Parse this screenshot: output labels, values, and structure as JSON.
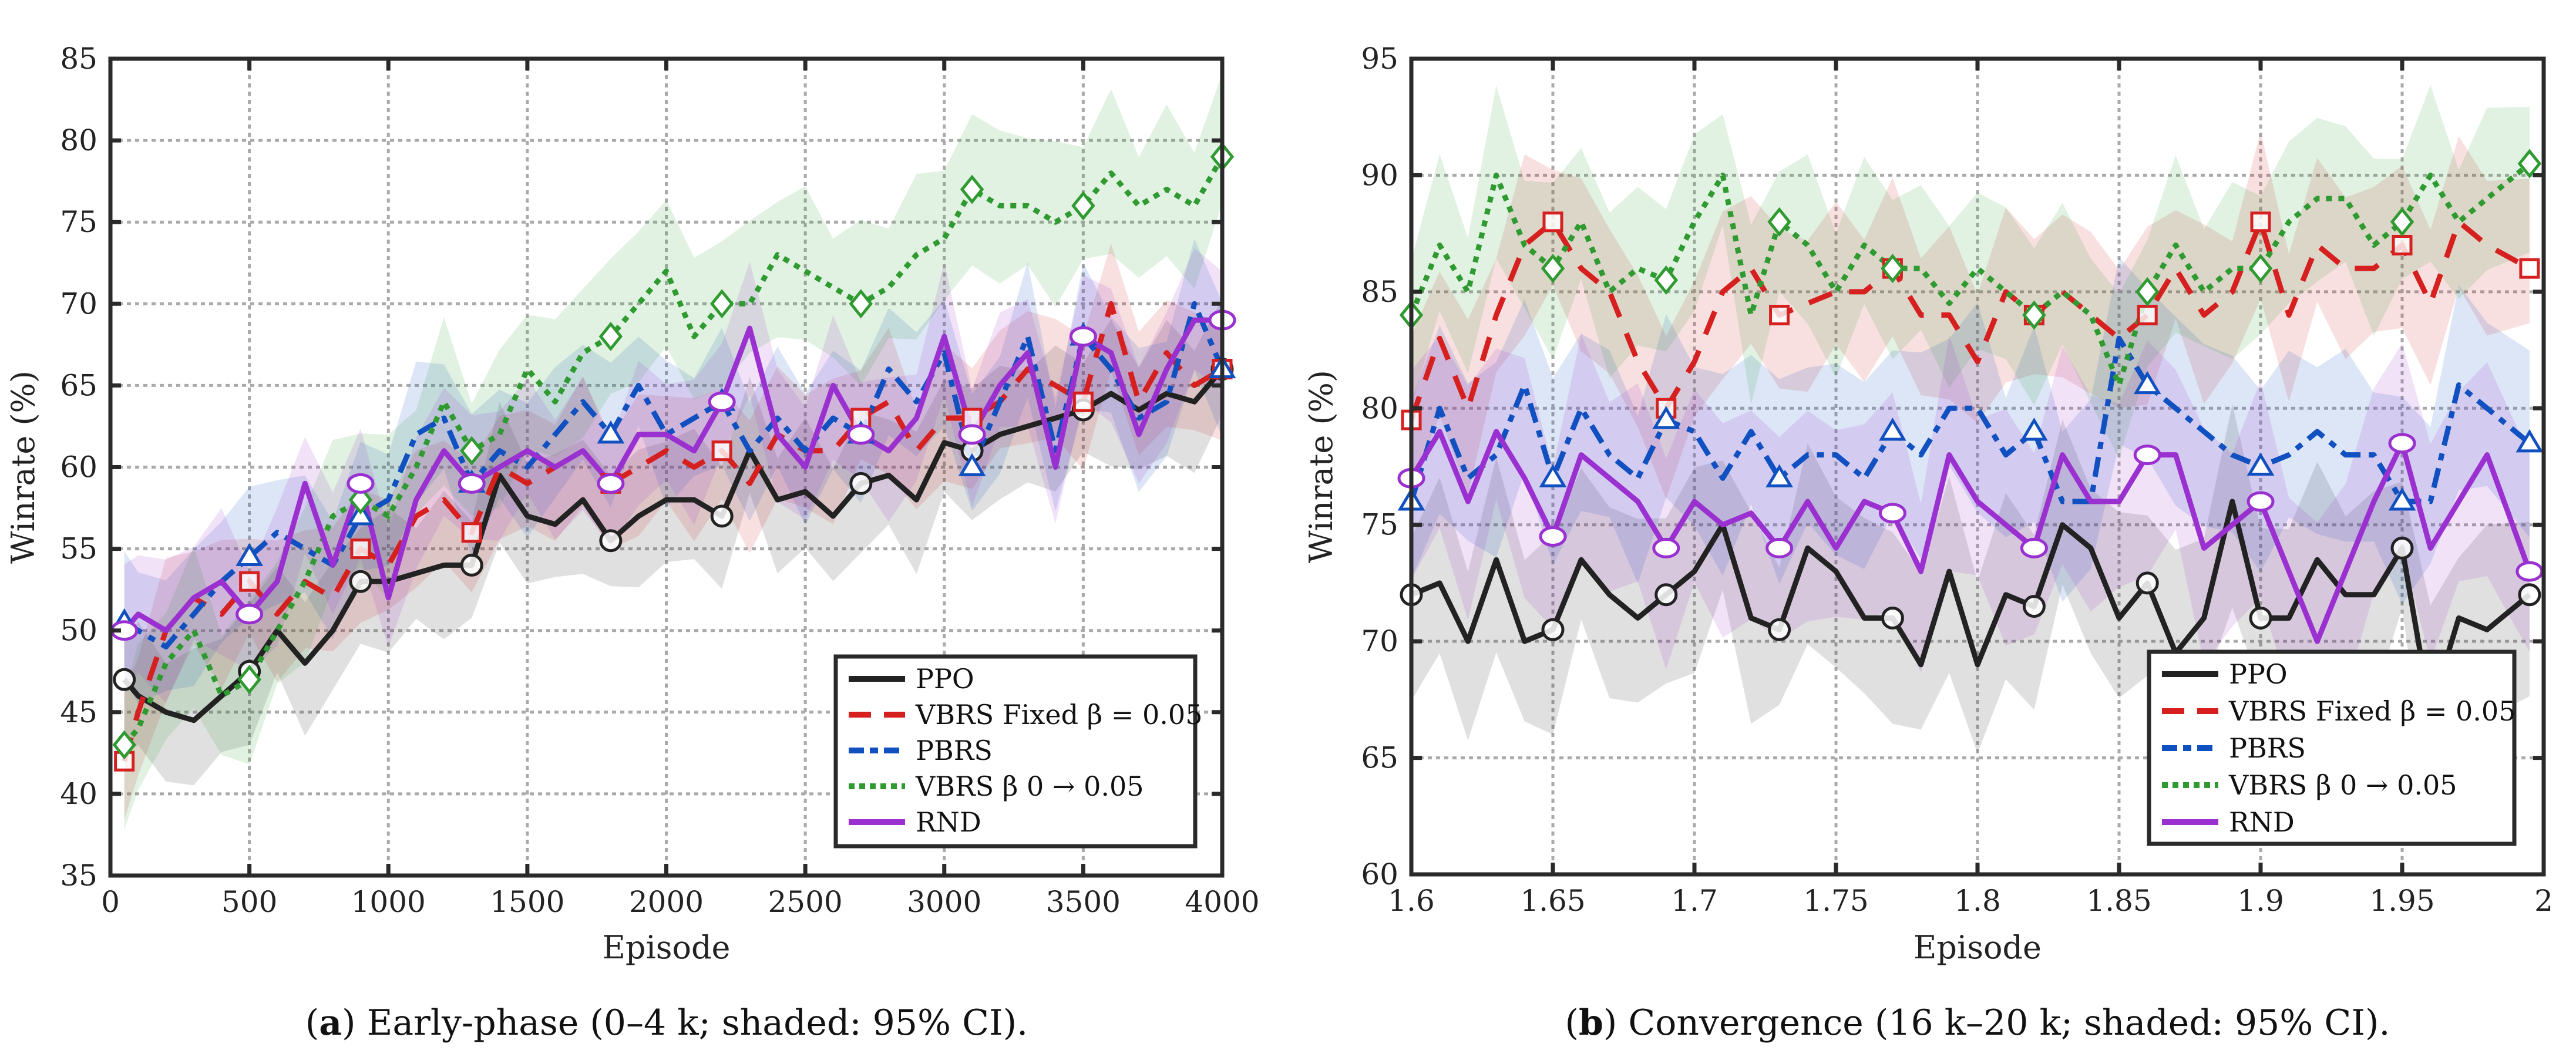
{
  "chart_data": [
    {
      "type": "line",
      "id": "a",
      "caption_label": "a",
      "caption_text": " Early-phase (0–4 k; shaded: 95% CI).",
      "xlabel": "Episode",
      "ylabel": "Winrate (%)",
      "xlim": [
        0,
        4000
      ],
      "ylim": [
        35,
        85
      ],
      "xticks": [
        0,
        500,
        1000,
        1500,
        2000,
        2500,
        3000,
        3500,
        4000
      ],
      "xtick_labels": [
        "0",
        "500",
        "1000",
        "1500",
        "2000",
        "2500",
        "3000",
        "3500",
        "4000"
      ],
      "yticks": [
        35,
        40,
        45,
        50,
        55,
        60,
        65,
        70,
        75,
        80,
        85
      ],
      "ytick_labels": [
        "35",
        "40",
        "45",
        "50",
        "55",
        "60",
        "65",
        "70",
        "75",
        "80",
        "85"
      ],
      "grid": true,
      "legend_position": "bottom-right",
      "x": [
        50,
        100,
        200,
        300,
        400,
        500,
        600,
        700,
        800,
        900,
        1000,
        1100,
        1200,
        1300,
        1400,
        1500,
        1600,
        1700,
        1800,
        1900,
        2000,
        2100,
        2200,
        2300,
        2400,
        2500,
        2600,
        2700,
        2800,
        2900,
        3000,
        3100,
        3200,
        3300,
        3400,
        3500,
        3600,
        3700,
        3800,
        3900,
        4000
      ],
      "marker_x": [
        50,
        500,
        900,
        1300,
        1800,
        2200,
        2700,
        3100,
        3500,
        4000
      ],
      "series": [
        {
          "key": "ppo",
          "name": "PPO",
          "color": "#222222",
          "ci": 3.5,
          "values": [
            47,
            46,
            45,
            44.5,
            46,
            47.5,
            50,
            48,
            50,
            53,
            53,
            53.5,
            54,
            54,
            59.5,
            57,
            56.5,
            58,
            55.5,
            57,
            58,
            58,
            57,
            61,
            58,
            58.5,
            57,
            59,
            59.5,
            58,
            61.5,
            61,
            62,
            62.5,
            63,
            63.5,
            64.5,
            63.5,
            64.5,
            64,
            66
          ]
        },
        {
          "key": "vbrs_fixed",
          "name": "VBRS Fixed β = 0.05",
          "color": "#d62020",
          "ci": 3.5,
          "values": [
            42,
            45,
            50,
            52,
            51,
            53,
            51,
            53,
            52,
            55,
            54,
            57,
            58,
            56,
            60,
            59,
            60,
            61,
            59,
            60,
            61,
            60,
            61,
            59,
            62,
            61,
            61,
            63,
            64,
            61,
            63,
            63,
            64,
            66,
            65,
            64,
            70,
            64,
            67,
            65,
            66
          ]
        },
        {
          "key": "pbrs",
          "name": "PBRS",
          "color": "#1050c0",
          "ci": 3.5,
          "values": [
            50.5,
            50,
            49,
            51,
            53,
            54.5,
            56,
            55,
            54,
            57,
            58,
            62,
            63,
            59,
            61,
            60,
            62,
            64,
            62,
            65,
            62,
            63,
            64,
            61,
            63,
            61,
            63,
            62,
            66,
            64,
            67,
            60,
            64,
            68,
            61,
            68,
            66,
            63,
            64,
            70,
            66
          ]
        },
        {
          "key": "vbrs_anneal",
          "name": "VBRS β 0 → 0.05",
          "color": "#2e9a30",
          "ci": 4,
          "values": [
            43,
            44,
            48,
            50,
            46,
            47,
            50,
            53,
            57,
            58,
            57,
            60,
            64,
            61,
            62,
            66,
            64,
            67,
            68,
            70,
            72,
            68,
            70,
            70,
            73,
            72,
            71,
            70,
            71,
            73,
            74,
            77,
            76,
            76,
            75,
            76,
            78,
            76,
            77,
            76,
            79
          ]
        },
        {
          "key": "rnd",
          "name": "RND",
          "color": "#9b30d0",
          "ci": 3.5,
          "values": [
            50,
            51,
            50,
            52,
            53,
            51,
            53,
            59,
            54,
            59,
            52,
            58,
            61,
            59,
            60,
            61,
            60,
            61,
            59,
            62,
            62,
            61,
            64,
            68.5,
            62,
            60,
            65,
            62,
            61,
            63,
            68,
            62,
            65,
            67,
            60,
            68,
            67,
            62,
            66,
            69,
            69
          ]
        }
      ]
    },
    {
      "type": "line",
      "id": "b",
      "caption_label": "b",
      "caption_text": " Convergence (16 k–20 k; shaded: 95% CI).",
      "xlabel": "Episode",
      "ylabel": "Winrate (%)",
      "xlim": [
        1.6,
        2.0
      ],
      "ylim": [
        60,
        95
      ],
      "xticks": [
        1.6,
        1.65,
        1.7,
        1.75,
        1.8,
        1.85,
        1.9,
        1.95,
        2.0
      ],
      "xtick_labels": [
        "1.6",
        "1.65",
        "1.7",
        "1.75",
        "1.8",
        "1.85",
        "1.9",
        "1.95",
        "2"
      ],
      "yticks": [
        60,
        65,
        70,
        75,
        80,
        85,
        90,
        95
      ],
      "ytick_labels": [
        "60",
        "65",
        "70",
        "75",
        "80",
        "85",
        "90",
        "95"
      ],
      "grid": true,
      "legend_position": "bottom-right",
      "x": [
        1.6,
        1.61,
        1.62,
        1.63,
        1.64,
        1.65,
        1.66,
        1.67,
        1.68,
        1.69,
        1.7,
        1.71,
        1.72,
        1.73,
        1.74,
        1.75,
        1.76,
        1.77,
        1.78,
        1.79,
        1.8,
        1.81,
        1.82,
        1.83,
        1.84,
        1.85,
        1.86,
        1.87,
        1.88,
        1.89,
        1.9,
        1.91,
        1.92,
        1.93,
        1.94,
        1.95,
        1.96,
        1.97,
        1.98,
        1.995
      ],
      "marker_x": [
        1.6,
        1.65,
        1.69,
        1.73,
        1.77,
        1.82,
        1.86,
        1.9,
        1.95,
        1.995
      ],
      "series": [
        {
          "key": "ppo",
          "name": "PPO",
          "color": "#222222",
          "ci": 3.5,
          "values": [
            72,
            72.5,
            70,
            73.5,
            70,
            70.5,
            73.5,
            72,
            71,
            72,
            73,
            75,
            71,
            70.5,
            74,
            73,
            71,
            71,
            69,
            73,
            69,
            72,
            71.5,
            75,
            74,
            71,
            72.5,
            69.5,
            71,
            76,
            71,
            71,
            73.5,
            72,
            72,
            74,
            67,
            71,
            70.5,
            72
          ]
        },
        {
          "key": "vbrs_fixed",
          "name": "VBRS Fixed β = 0.05",
          "color": "#d62020",
          "ci": 3,
          "values": [
            79.5,
            83,
            80,
            84,
            87,
            88,
            86,
            85,
            82,
            80,
            82,
            85,
            86,
            84,
            84.5,
            85,
            85,
            86,
            84,
            84,
            82,
            85,
            84,
            85,
            84,
            83,
            84,
            86,
            84,
            85,
            88,
            84,
            87,
            86,
            86,
            87,
            84.5,
            88,
            87,
            86
          ]
        },
        {
          "key": "pbrs",
          "name": "PBRS",
          "color": "#1050c0",
          "ci": 3.5,
          "values": [
            76,
            80,
            77,
            78,
            81,
            77,
            80,
            78,
            77,
            79.5,
            79,
            77,
            79,
            77,
            78,
            78,
            77,
            79,
            78,
            80,
            80,
            78,
            79,
            76,
            76,
            83,
            81,
            80,
            79,
            78,
            77.5,
            78,
            79,
            78,
            78,
            76,
            76,
            81,
            80,
            78.5
          ]
        },
        {
          "key": "vbrs_anneal",
          "name": "VBRS β 0 → 0.05",
          "color": "#2e9a30",
          "ci": 3,
          "values": [
            84,
            87,
            85,
            90,
            87,
            86,
            88,
            85,
            86,
            85.5,
            88,
            90,
            84,
            88,
            87,
            85,
            87,
            86,
            86,
            84.5,
            86,
            85,
            84,
            85,
            84,
            81,
            85,
            87,
            85,
            86,
            86,
            88,
            89,
            89,
            87,
            88,
            90,
            88,
            89,
            90.5
          ]
        },
        {
          "key": "rnd",
          "name": "RND",
          "color": "#9b30d0",
          "ci": 4,
          "values": [
            77,
            79,
            76,
            79,
            77,
            74.5,
            78,
            77,
            76,
            74,
            76,
            75,
            75.5,
            74,
            76,
            74,
            76,
            75.5,
            73,
            78,
            76,
            75,
            74,
            78,
            76,
            76,
            78,
            78,
            74,
            75,
            76,
            73,
            70,
            73,
            76,
            78.5,
            74,
            76,
            78,
            73
          ]
        }
      ]
    }
  ]
}
